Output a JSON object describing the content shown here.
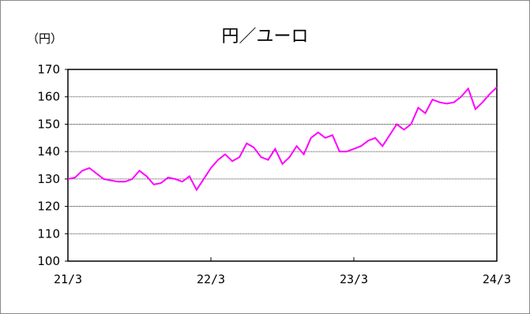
{
  "chart_data": {
    "type": "line",
    "title": "円／ユーロ",
    "ylabel": "（円）",
    "ylim": [
      100,
      170
    ],
    "yticks": [
      "100",
      "110",
      "120",
      "130",
      "140",
      "150",
      "160",
      "170"
    ],
    "xticks": [
      "21/3",
      "22/3",
      "23/3",
      "24/3"
    ],
    "grid": "horizontal-dotted",
    "series": [
      {
        "color": "#ff00ff",
        "x": [
          0,
          0.05,
          0.1,
          0.15,
          0.2,
          0.25,
          0.3,
          0.35,
          0.4,
          0.45,
          0.5,
          0.55,
          0.6,
          0.65,
          0.7,
          0.75,
          0.8,
          0.85,
          0.9,
          0.95,
          1,
          1.05,
          1.1,
          1.15,
          1.2,
          1.25,
          1.3,
          1.35,
          1.4,
          1.45,
          1.5,
          1.55,
          1.6,
          1.65,
          1.7,
          1.75,
          1.8,
          1.85,
          1.9,
          1.95,
          2,
          2.05,
          2.1,
          2.15,
          2.2,
          2.25,
          2.3,
          2.35,
          2.4,
          2.45,
          2.5,
          2.55,
          2.6,
          2.65,
          2.7,
          2.75,
          2.8,
          2.85,
          2.9,
          2.95,
          3
        ],
        "values": [
          130,
          130.5,
          133,
          134,
          132,
          130,
          129.5,
          129,
          129,
          130,
          133,
          131,
          128,
          128.5,
          130.5,
          130,
          129,
          131,
          126,
          130,
          134,
          137,
          139,
          136.5,
          138,
          143,
          141.5,
          138,
          137,
          141,
          135.5,
          138,
          142,
          139,
          145,
          147,
          145,
          146,
          140,
          140,
          141,
          142,
          144,
          145,
          142,
          146,
          150,
          148,
          150,
          156,
          154,
          159,
          158,
          157.5,
          158,
          160,
          163,
          155.5,
          158,
          161,
          163.5
        ]
      }
    ]
  }
}
